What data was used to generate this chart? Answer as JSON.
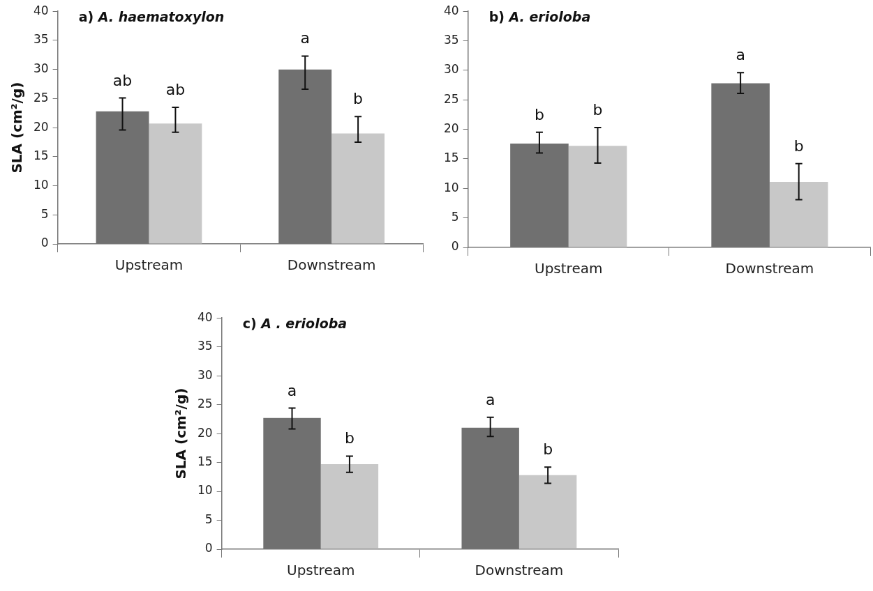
{
  "chart_data": [
    {
      "type": "bar",
      "title": "a) A. haematoxylon",
      "ylabel": "SLA (cm²/g)",
      "categories": [
        "Upstream",
        "Downstream"
      ],
      "series": [
        {
          "color": "#707070",
          "values": [
            22.8,
            30.0
          ],
          "errors": [
            [
              19.6,
              25.1
            ],
            [
              26.6,
              32.3
            ]
          ],
          "value_labels": [
            "ab",
            "a"
          ]
        },
        {
          "color": "#c8c8c8",
          "values": [
            20.7,
            19.0
          ],
          "errors": [
            [
              19.2,
              23.5
            ],
            [
              17.5,
              21.9
            ]
          ],
          "value_labels": [
            "ab",
            "b"
          ]
        }
      ],
      "ylim": [
        0,
        40
      ],
      "yticks": [
        0,
        5,
        10,
        15,
        20,
        25,
        30,
        35,
        40
      ],
      "grid": false,
      "legend": false
    },
    {
      "type": "bar",
      "title": "b) A. erioloba",
      "categories": [
        "Upstream",
        "Downstream"
      ],
      "series": [
        {
          "color": "#707070",
          "values": [
            17.6,
            27.8
          ],
          "errors": [
            [
              16.0,
              19.5
            ],
            [
              26.1,
              29.6
            ]
          ],
          "value_labels": [
            "b",
            "a"
          ]
        },
        {
          "color": "#c8c8c8",
          "values": [
            17.2,
            11.1
          ],
          "errors": [
            [
              14.3,
              20.3
            ],
            [
              8.1,
              14.2
            ]
          ],
          "value_labels": [
            "b",
            "b"
          ]
        }
      ],
      "ylim": [
        0,
        40
      ],
      "yticks": [
        0,
        5,
        10,
        15,
        20,
        25,
        30,
        35,
        40
      ],
      "grid": false,
      "legend": false
    },
    {
      "type": "bar",
      "title": "c) A . erioloba",
      "ylabel": "SLA (cm²/g)",
      "categories": [
        "Upstream",
        "Downstream"
      ],
      "series": [
        {
          "color": "#707070",
          "values": [
            22.7,
            21.0
          ],
          "errors": [
            [
              20.8,
              24.4
            ],
            [
              19.5,
              22.8
            ]
          ],
          "value_labels": [
            "a",
            "a"
          ]
        },
        {
          "color": "#c8c8c8",
          "values": [
            14.7,
            12.8
          ],
          "errors": [
            [
              13.3,
              16.1
            ],
            [
              11.4,
              14.2
            ]
          ],
          "value_labels": [
            "b",
            "b"
          ]
        }
      ],
      "ylim": [
        0,
        40
      ],
      "yticks": [
        0,
        5,
        10,
        15,
        20,
        25,
        30,
        35,
        40
      ],
      "grid": false,
      "legend": false
    }
  ]
}
